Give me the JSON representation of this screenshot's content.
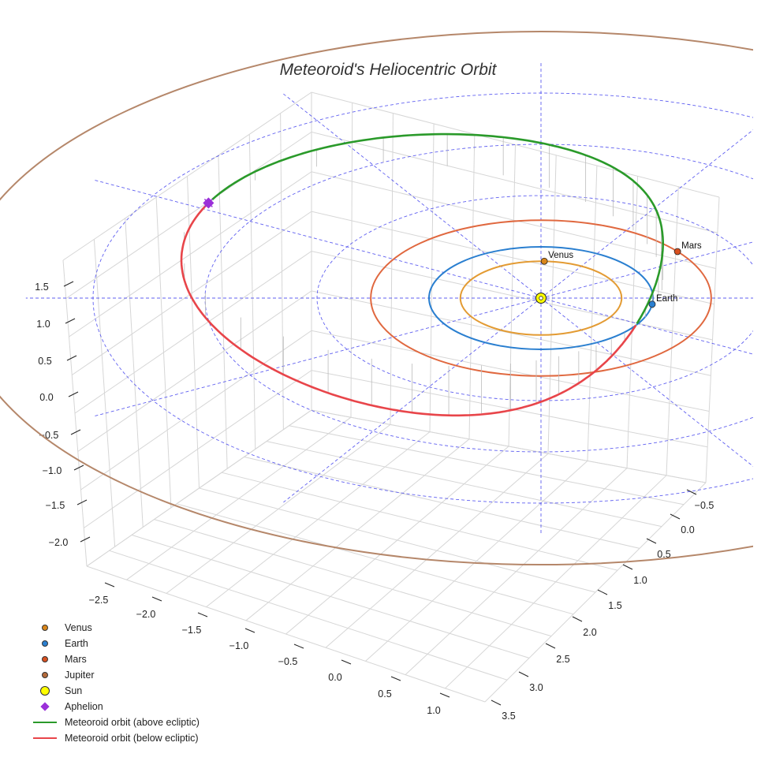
{
  "chart_data": {
    "type": "3d-orbit",
    "title": "Meteoroid's Heliocentric Orbit",
    "axes": {
      "x": {
        "ticks": [
          "−2.5",
          "−2.0",
          "−1.5",
          "−1.0",
          "−0.5",
          "0.0",
          "0.5",
          "1.0"
        ]
      },
      "y": {
        "ticks": [
          "−0.5",
          "0.0",
          "0.5",
          "1.0",
          "1.5",
          "2.0",
          "2.5",
          "3.0",
          "3.5"
        ]
      },
      "z": {
        "ticks": [
          "1.5",
          "1.0",
          "0.5",
          "0.0",
          "−0.5",
          "−1.0",
          "−1.5",
          "−2.0"
        ]
      }
    },
    "planets": [
      {
        "name": "Venus",
        "radius_au": 0.72,
        "color": "#e39b33",
        "show_label": true
      },
      {
        "name": "Earth",
        "radius_au": 1.0,
        "color": "#2a7fd0",
        "show_label": true
      },
      {
        "name": "Mars",
        "radius_au": 1.52,
        "color": "#e0683f",
        "show_label": true
      },
      {
        "name": "Jupiter",
        "radius_au": 5.2,
        "color": "#b5876a",
        "show_label": false
      }
    ],
    "reference_circles_au": [
      1,
      2,
      3,
      4
    ],
    "legend": [
      {
        "label": "Venus",
        "marker": "dot",
        "color": "#d9861a"
      },
      {
        "label": "Earth",
        "marker": "dot",
        "color": "#2a7fd0"
      },
      {
        "label": "Mars",
        "marker": "dot",
        "color": "#d8501f"
      },
      {
        "label": "Jupiter",
        "marker": "dot",
        "color": "#b36a3a"
      },
      {
        "label": "Sun",
        "marker": "sun",
        "color": "#ffff00"
      },
      {
        "label": "Aphelion",
        "marker": "diamond",
        "color": "#9b30d9"
      },
      {
        "label": "Meteoroid orbit (above ecliptic)",
        "marker": "line",
        "color": "#2a9a2a"
      },
      {
        "label": "Meteoroid orbit (below ecliptic)",
        "marker": "line",
        "color": "#e8454a"
      }
    ],
    "series_colors": {
      "above": "#2a9a2a",
      "below": "#e8454a",
      "grid": "#4444ee",
      "aphelion": "#9b30d9"
    }
  }
}
